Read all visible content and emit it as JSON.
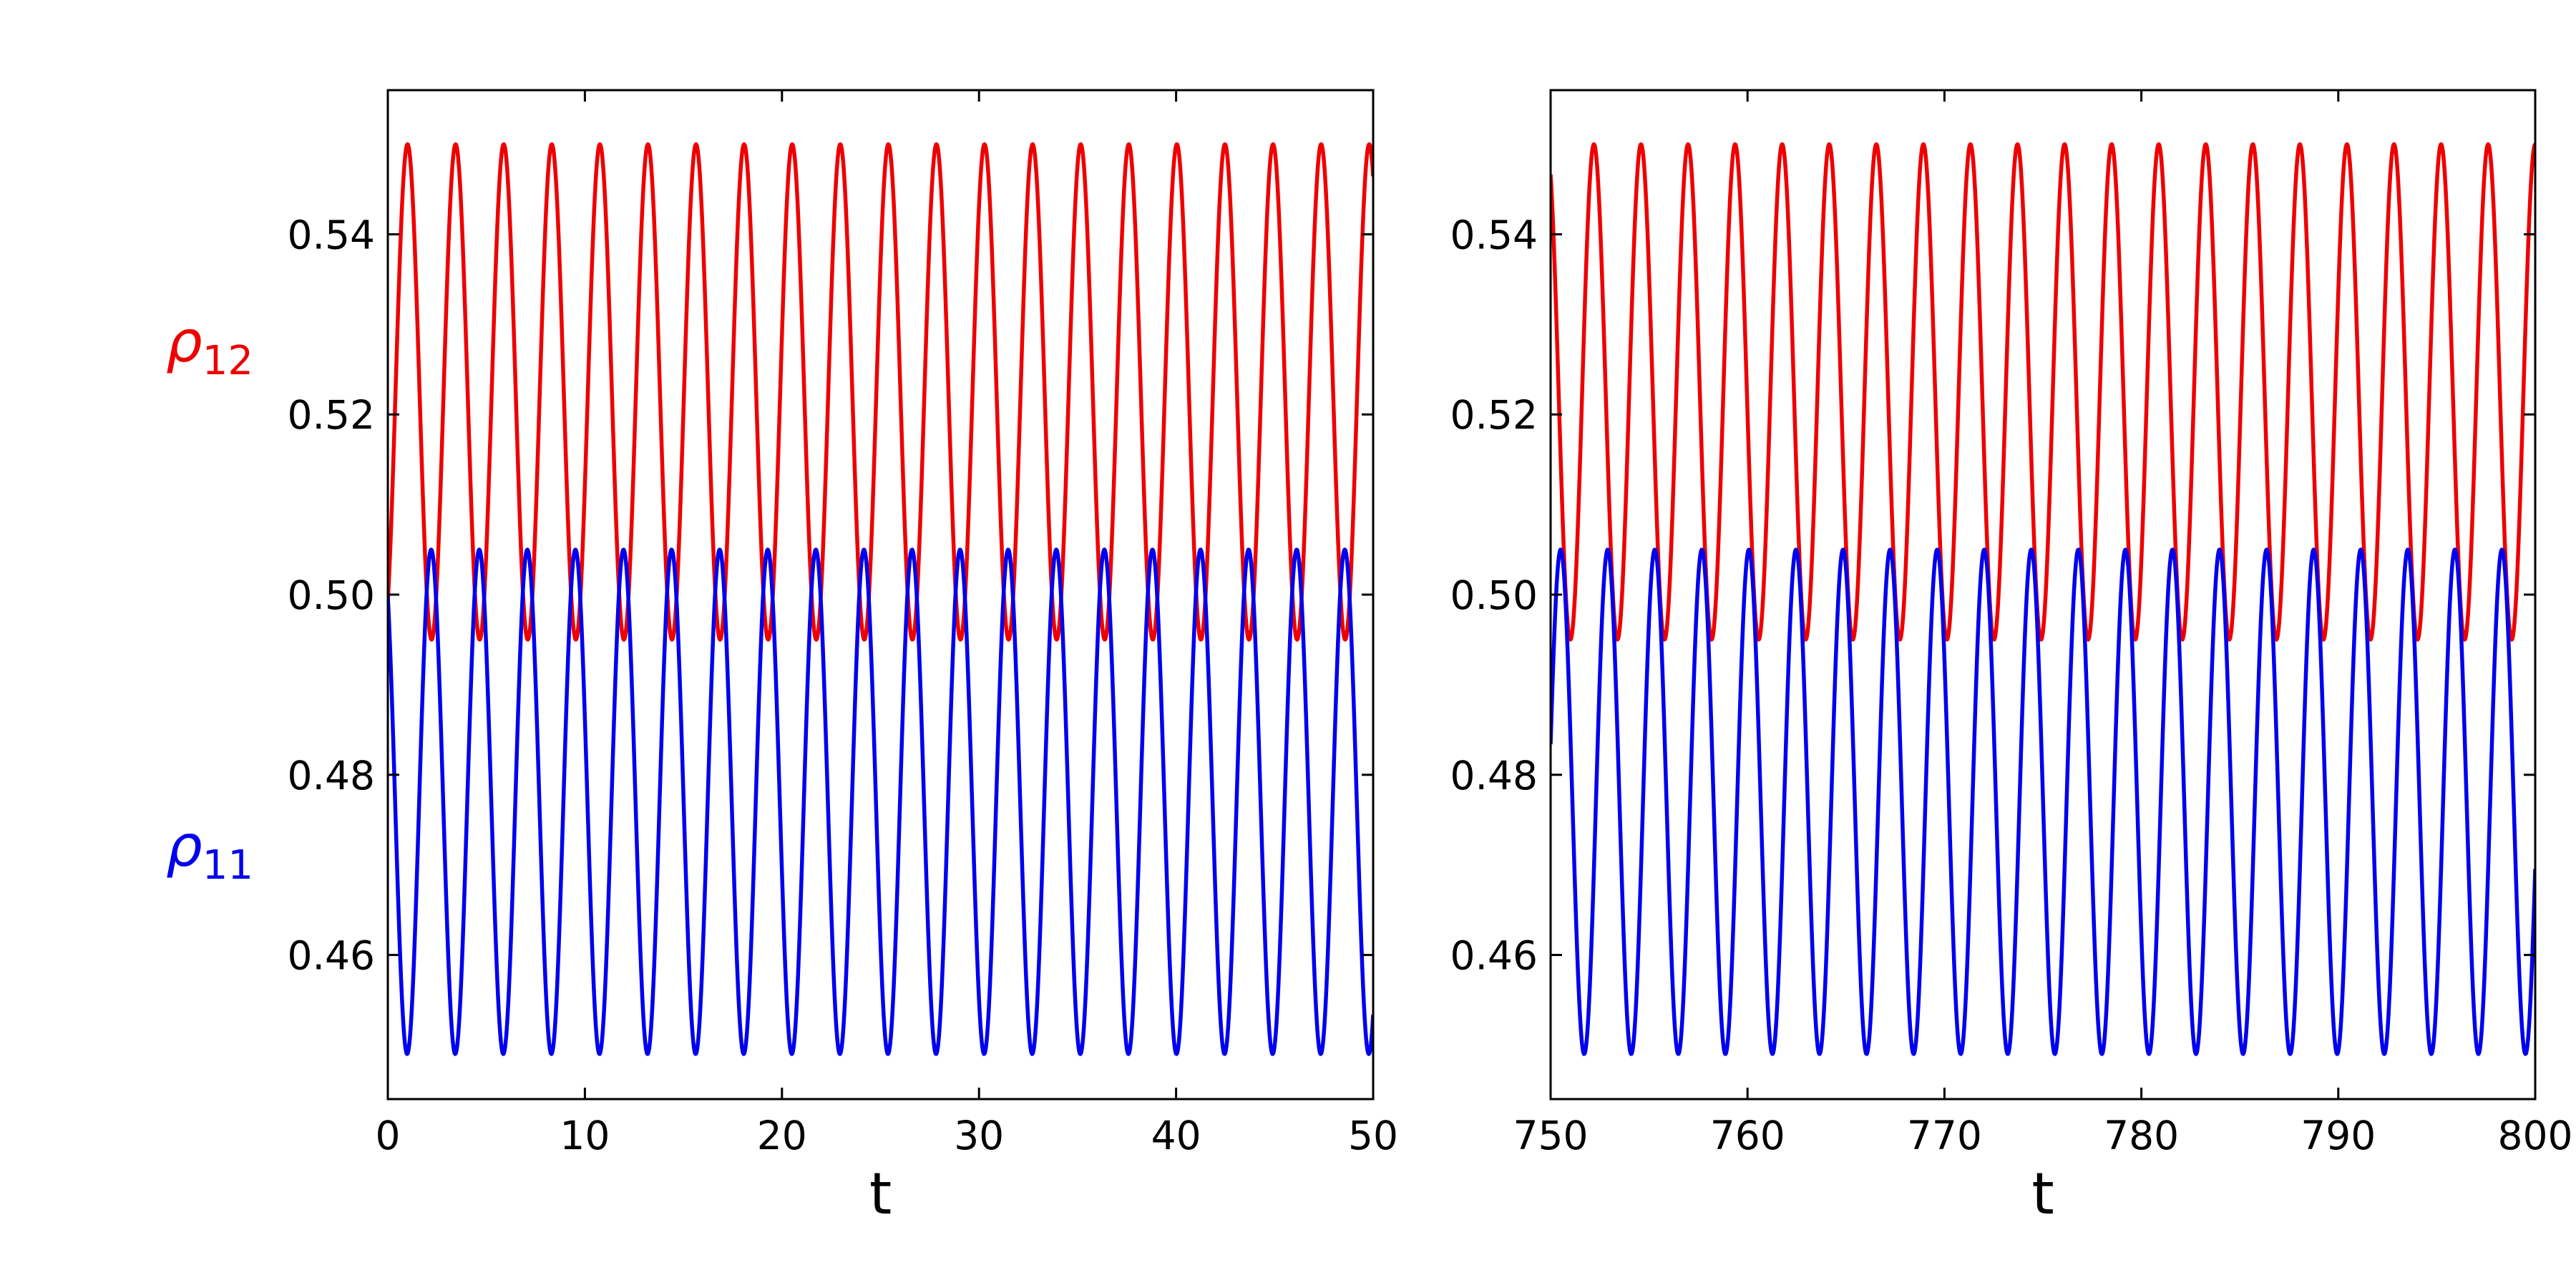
{
  "colors": {
    "rho11": "#0000ee",
    "rho12": "#ee0000",
    "axes": "#000000"
  },
  "series_labels": [
    {
      "id": "rho12",
      "symbol": "ρ",
      "subscript": "12",
      "color": "#ee0000"
    },
    {
      "id": "rho11",
      "symbol": "ρ",
      "subscript": "11",
      "color": "#0000ee"
    }
  ],
  "chart_data": [
    {
      "type": "line",
      "panel": "left",
      "xlabel": "t",
      "ylabel": "",
      "xlim": [
        0,
        50
      ],
      "ylim": [
        0.444,
        0.556
      ],
      "xticks": [
        0,
        10,
        20,
        30,
        40,
        50
      ],
      "xtick_labels": [
        "0",
        "10",
        "20",
        "30",
        "40",
        "50"
      ],
      "yticks": [
        0.46,
        0.48,
        0.5,
        0.52,
        0.54
      ],
      "ytick_labels": [
        "0.46",
        "0.48",
        "0.50",
        "0.52",
        "0.54"
      ],
      "grid": false,
      "series": [
        {
          "name": "ρ12",
          "color": "#ee0000",
          "mean": 0.5225,
          "amplitude": 0.0275,
          "period": 2.44,
          "phase": 0.0,
          "t_peak": 1.0,
          "shape": "cos"
        },
        {
          "name": "ρ11",
          "color": "#0000ee",
          "mean": 0.477,
          "amplitude": 0.028,
          "period": 2.44,
          "phase": 0.0,
          "t_peak": 2.2,
          "shape": "cos"
        }
      ]
    },
    {
      "type": "line",
      "panel": "right",
      "xlabel": "t",
      "ylabel": "",
      "xlim": [
        750,
        800
      ],
      "ylim": [
        0.444,
        0.556
      ],
      "xticks": [
        750,
        760,
        770,
        780,
        790,
        800
      ],
      "xtick_labels": [
        "750",
        "760",
        "770",
        "780",
        "790",
        "800"
      ],
      "yticks": [
        0.46,
        0.48,
        0.5,
        0.52,
        0.54
      ],
      "ytick_labels": [
        "0.46",
        "0.48",
        "0.50",
        "0.52",
        "0.54"
      ],
      "grid": false,
      "series": [
        {
          "name": "ρ12",
          "color": "#ee0000",
          "mean": 0.5225,
          "amplitude": 0.0275,
          "period": 2.39,
          "t_peak": 752.2,
          "shape": "cos"
        },
        {
          "name": "ρ11",
          "color": "#0000ee",
          "mean": 0.477,
          "amplitude": 0.028,
          "period": 2.39,
          "t_peak": 752.9,
          "shape": "cos"
        }
      ]
    }
  ]
}
